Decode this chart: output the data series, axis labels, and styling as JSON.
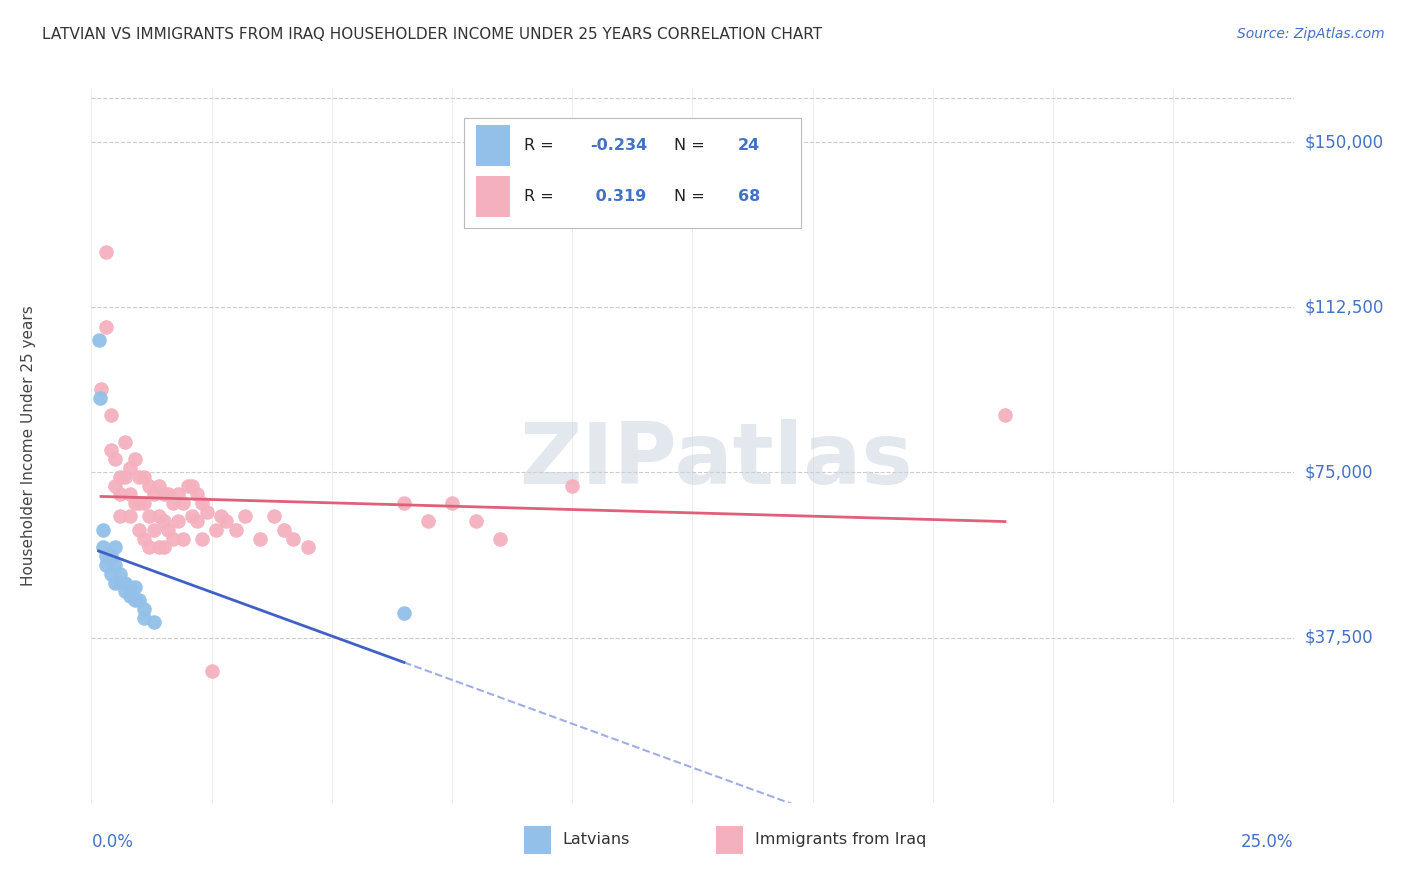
{
  "title": "LATVIAN VS IMMIGRANTS FROM IRAQ HOUSEHOLDER INCOME UNDER 25 YEARS CORRELATION CHART",
  "source": "Source: ZipAtlas.com",
  "ylabel": "Householder Income Under 25 years",
  "ytick_labels": [
    "$37,500",
    "$75,000",
    "$112,500",
    "$150,000"
  ],
  "ytick_values": [
    37500,
    75000,
    112500,
    150000
  ],
  "xmin": 0.0,
  "xmax": 0.25,
  "ymin": 0,
  "ymax": 162000,
  "watermark": "ZIPatlas",
  "latvian_R": -0.234,
  "latvian_N": 24,
  "iraq_R": 0.319,
  "iraq_N": 68,
  "latvian_color": "#92c0e8",
  "iraq_color": "#f5b0be",
  "latvian_line_color": "#4060c8",
  "iraq_line_color": "#e0607a",
  "legend_label_latvian": "Latvians",
  "legend_label_iraq": "Immigrants from Iraq",
  "latvian_x": [
    0.0015,
    0.0018,
    0.0025,
    0.0025,
    0.003,
    0.003,
    0.004,
    0.004,
    0.005,
    0.005,
    0.005,
    0.006,
    0.006,
    0.007,
    0.007,
    0.008,
    0.008,
    0.009,
    0.009,
    0.01,
    0.011,
    0.011,
    0.013,
    0.065
  ],
  "latvian_y": [
    105000,
    92000,
    62000,
    58000,
    56000,
    54000,
    56000,
    52000,
    58000,
    54000,
    50000,
    52000,
    50000,
    50000,
    48000,
    49000,
    47000,
    49000,
    46000,
    46000,
    44000,
    42000,
    41000,
    43000
  ],
  "iraq_x": [
    0.002,
    0.003,
    0.003,
    0.004,
    0.004,
    0.005,
    0.005,
    0.006,
    0.006,
    0.006,
    0.007,
    0.007,
    0.008,
    0.008,
    0.008,
    0.009,
    0.009,
    0.01,
    0.01,
    0.01,
    0.011,
    0.011,
    0.011,
    0.012,
    0.012,
    0.012,
    0.013,
    0.013,
    0.014,
    0.014,
    0.014,
    0.015,
    0.015,
    0.015,
    0.016,
    0.016,
    0.017,
    0.017,
    0.018,
    0.018,
    0.019,
    0.019,
    0.02,
    0.021,
    0.021,
    0.022,
    0.022,
    0.023,
    0.023,
    0.024,
    0.025,
    0.026,
    0.027,
    0.028,
    0.03,
    0.032,
    0.035,
    0.038,
    0.04,
    0.042,
    0.045,
    0.065,
    0.07,
    0.075,
    0.08,
    0.085,
    0.1,
    0.19
  ],
  "iraq_y": [
    94000,
    125000,
    108000,
    88000,
    80000,
    78000,
    72000,
    74000,
    70000,
    65000,
    82000,
    74000,
    76000,
    70000,
    65000,
    78000,
    68000,
    74000,
    68000,
    62000,
    74000,
    68000,
    60000,
    72000,
    65000,
    58000,
    70000,
    62000,
    72000,
    65000,
    58000,
    70000,
    64000,
    58000,
    70000,
    62000,
    68000,
    60000,
    70000,
    64000,
    68000,
    60000,
    72000,
    72000,
    65000,
    70000,
    64000,
    68000,
    60000,
    66000,
    30000,
    62000,
    65000,
    64000,
    62000,
    65000,
    60000,
    65000,
    62000,
    60000,
    58000,
    68000,
    64000,
    68000,
    64000,
    60000,
    72000,
    88000
  ]
}
